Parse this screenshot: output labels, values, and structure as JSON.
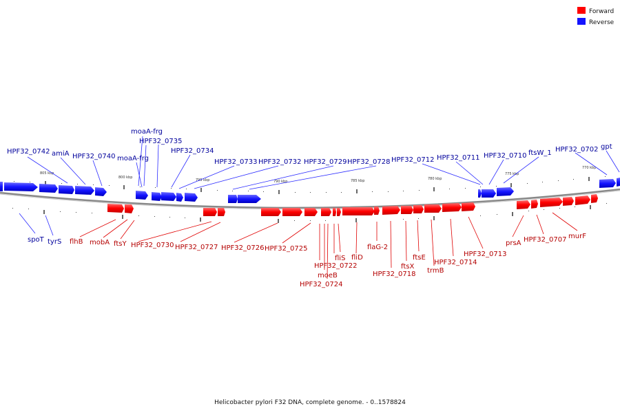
{
  "colors": {
    "forward": "#ff0000",
    "reverse": "#1414ff",
    "forward_label": "#b40000",
    "reverse_label": "#00009c",
    "backbone": "#777777"
  },
  "legend": [
    {
      "label": "Forward",
      "color": "#ff0000"
    },
    {
      "label": "Reverse",
      "color": "#1414ff"
    }
  ],
  "caption": "Helicobacter pylori F32 DNA, complete genome. - 0..1578824",
  "ticks": [
    "805 kbp",
    "800 kbp",
    "795 kbp",
    "790 kbp",
    "785 kbp",
    "780 kbp",
    "775 kbp",
    "770 kbp"
  ],
  "reverse_labels": [
    "HPF32_0742",
    "amiA",
    "HPF32_0740",
    "moaA-frg",
    "HPF32_0735",
    "moaA-frg",
    "HPF32_0734",
    "HPF32_0733",
    "HPF32_0732",
    "HPF32_0729",
    "HPF32_0728",
    "HPF32_0712",
    "HPF32_0711",
    "HPF32_0710",
    "ftsW_1",
    "HPF32_0702",
    "gpt",
    "spoT",
    "tyrS"
  ],
  "forward_labels": [
    "flhB",
    "mobA",
    "ftsY",
    "HPF32_0730",
    "HPF32_0727",
    "HPF32_0726",
    "HPF32_0725",
    "HPF32_0722",
    "moeB",
    "HPF32_0724",
    "fliS",
    "fliD",
    "flaG-2",
    "HPF32_0718",
    "ftsX",
    "ftsE",
    "trmB",
    "HPF32_0714",
    "HPF32_0713",
    "prsA",
    "HPF32_0707",
    "murF"
  ]
}
